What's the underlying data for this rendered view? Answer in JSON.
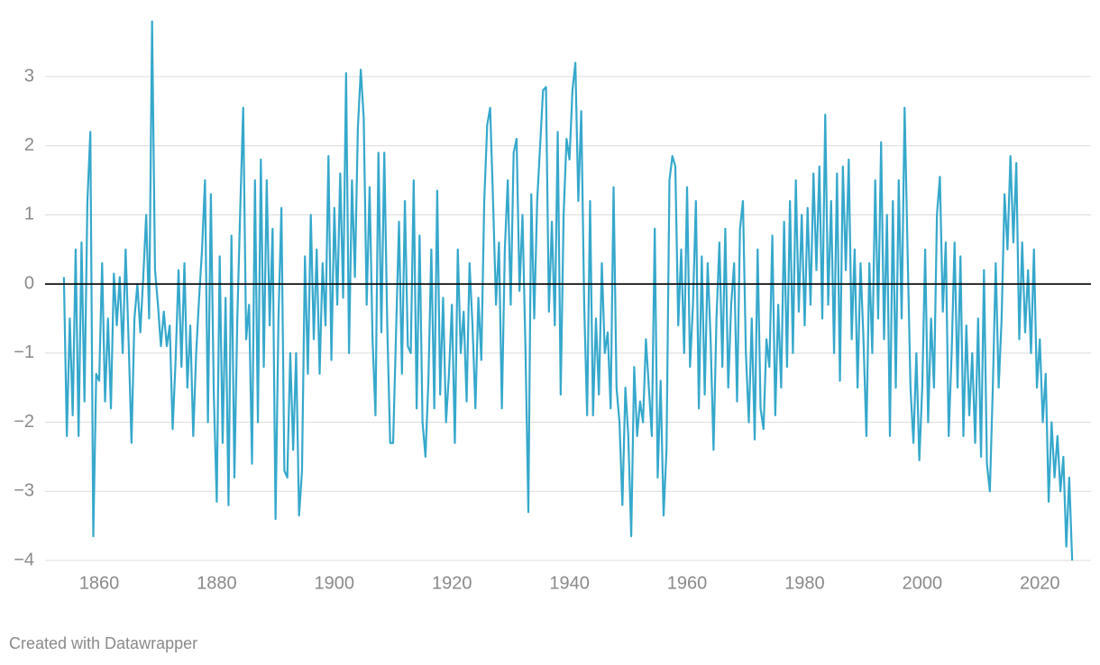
{
  "chart_data": {
    "type": "line",
    "credit": "Created with Datawrapper",
    "xlim": [
      1850.8,
      2028.7
    ],
    "xticks": [
      1860,
      1880,
      1900,
      1920,
      1940,
      1960,
      1980,
      2000,
      2020
    ],
    "ylim": [
      -4,
      3.9
    ],
    "yticks": [
      {
        "value": -4,
        "label": "−4"
      },
      {
        "value": -3,
        "label": "−3"
      },
      {
        "value": -2,
        "label": "−2"
      },
      {
        "value": -1,
        "label": "−1"
      },
      0,
      1,
      2,
      3
    ],
    "grid": true,
    "x": [
      1854,
      1854.5,
      1855,
      1855.5,
      1856,
      1856.5,
      1857,
      1857.5,
      1858,
      1858.5,
      1859,
      1859.5,
      1860,
      1860.5,
      1861,
      1861.5,
      1862,
      1862.5,
      1863,
      1863.5,
      1864,
      1864.5,
      1865,
      1865.5,
      1866,
      1866.5,
      1867,
      1867.5,
      1868,
      1868.5,
      1869,
      1869.5,
      1870,
      1870.5,
      1871,
      1871.5,
      1872,
      1872.5,
      1873,
      1873.5,
      1874,
      1874.5,
      1875,
      1875.5,
      1876,
      1876.5,
      1877,
      1877.5,
      1878,
      1878.5,
      1879,
      1879.5,
      1880,
      1880.5,
      1881,
      1881.5,
      1882,
      1882.5,
      1883,
      1883.5,
      1884,
      1884.5,
      1885,
      1885.5,
      1886,
      1886.5,
      1887,
      1887.5,
      1888,
      1888.5,
      1889,
      1889.5,
      1890,
      1890.5,
      1891,
      1891.5,
      1892,
      1892.5,
      1893,
      1893.5,
      1894,
      1894.5,
      1895,
      1895.5,
      1896,
      1896.5,
      1897,
      1897.5,
      1898,
      1898.5,
      1899,
      1899.5,
      1900,
      1900.5,
      1901,
      1901.5,
      1902,
      1902.5,
      1903,
      1903.5,
      1904,
      1904.5,
      1905,
      1905.5,
      1906,
      1906.5,
      1907,
      1907.5,
      1908,
      1908.5,
      1909,
      1909.5,
      1910,
      1910.5,
      1911,
      1911.5,
      1912,
      1912.5,
      1913,
      1913.5,
      1914,
      1914.5,
      1915,
      1915.5,
      1916,
      1916.5,
      1917,
      1917.5,
      1918,
      1918.5,
      1919,
      1919.5,
      1920,
      1920.5,
      1921,
      1921.5,
      1922,
      1922.5,
      1923,
      1923.5,
      1924,
      1924.5,
      1925,
      1925.5,
      1926,
      1926.5,
      1927,
      1927.5,
      1928,
      1928.5,
      1929,
      1929.5,
      1930,
      1930.5,
      1931,
      1931.5,
      1932,
      1932.5,
      1933,
      1933.5,
      1934,
      1934.5,
      1935,
      1935.5,
      1936,
      1936.5,
      1937,
      1937.5,
      1938,
      1938.5,
      1939,
      1939.5,
      1940,
      1940.5,
      1941,
      1941.5,
      1942,
      1942.5,
      1943,
      1943.5,
      1944,
      1944.5,
      1945,
      1945.5,
      1946,
      1946.5,
      1947,
      1947.5,
      1948,
      1948.5,
      1949,
      1949.5,
      1950,
      1950.5,
      1951,
      1951.5,
      1952,
      1952.5,
      1953,
      1953.5,
      1954,
      1954.5,
      1955,
      1955.5,
      1956,
      1956.5,
      1957,
      1957.5,
      1958,
      1958.5,
      1959,
      1959.5,
      1960,
      1960.5,
      1961,
      1961.5,
      1962,
      1962.5,
      1963,
      1963.5,
      1964,
      1964.5,
      1965,
      1965.5,
      1966,
      1966.5,
      1967,
      1967.5,
      1968,
      1968.5,
      1969,
      1969.5,
      1970,
      1970.5,
      1971,
      1971.5,
      1972,
      1972.5,
      1973,
      1973.5,
      1974,
      1974.5,
      1975,
      1975.5,
      1976,
      1976.5,
      1977,
      1977.5,
      1978,
      1978.5,
      1979,
      1979.5,
      1980,
      1980.5,
      1981,
      1981.5,
      1982,
      1982.5,
      1983,
      1983.5,
      1984,
      1984.5,
      1985,
      1985.5,
      1986,
      1986.5,
      1987,
      1987.5,
      1988,
      1988.5,
      1989,
      1989.5,
      1990,
      1990.5,
      1991,
      1991.5,
      1992,
      1992.5,
      1993,
      1993.5,
      1994,
      1994.5,
      1995,
      1995.5,
      1996,
      1996.5,
      1997,
      1997.5,
      1998,
      1998.5,
      1999,
      1999.5,
      2000,
      2000.5,
      2001,
      2001.5,
      2002,
      2002.5,
      2003,
      2003.5,
      2004,
      2004.5,
      2005,
      2005.5,
      2006,
      2006.5,
      2007,
      2007.5,
      2008,
      2008.5,
      2009,
      2009.5,
      2010,
      2010.5,
      2011,
      2011.5,
      2012,
      2012.5,
      2013,
      2013.5,
      2014,
      2014.5,
      2015,
      2015.5,
      2016,
      2016.5,
      2017,
      2017.5,
      2018,
      2018.5,
      2019,
      2019.5,
      2020,
      2020.5,
      2021,
      2021.5,
      2022,
      2022.5,
      2023,
      2023.5,
      2024,
      2024.5,
      2025,
      2025.5
    ],
    "series": [
      {
        "color": "#36a8cc",
        "values": [
          0.1,
          -2.2,
          -0.5,
          -1.9,
          0.5,
          -2.2,
          0.6,
          -1.7,
          1.2,
          2.2,
          -3.65,
          -1.3,
          -1.4,
          0.3,
          -1.7,
          -0.5,
          -1.8,
          0.15,
          -0.6,
          0.1,
          -1.0,
          0.5,
          -0.8,
          -2.3,
          -0.5,
          0,
          -0.7,
          0.1,
          1.0,
          -0.5,
          3.8,
          0.2,
          -0.3,
          -0.9,
          -0.4,
          -0.9,
          -0.6,
          -2.1,
          -1.1,
          0.2,
          -1.2,
          0.3,
          -1.5,
          -0.6,
          -2.2,
          -1.0,
          -0.2,
          0.5,
          1.5,
          -2.0,
          1.3,
          -1.6,
          -3.15,
          0.4,
          -2.3,
          -0.2,
          -3.2,
          0.7,
          -2.8,
          -0.5,
          1.1,
          2.55,
          -0.8,
          -0.3,
          -2.6,
          1.5,
          -2.0,
          1.8,
          -1.2,
          1.5,
          -0.6,
          0.8,
          -3.4,
          -0.5,
          1.1,
          -2.7,
          -2.8,
          -1.0,
          -2.4,
          -1.0,
          -3.35,
          -2.7,
          0.4,
          -1.3,
          1.0,
          -0.8,
          0.5,
          -1.3,
          0.3,
          -0.6,
          1.85,
          -1.1,
          1.1,
          -0.3,
          1.6,
          -0.2,
          3.05,
          -1.0,
          1.5,
          0.1,
          2.25,
          3.1,
          2.4,
          -0.3,
          1.4,
          -0.8,
          -1.9,
          1.9,
          -0.7,
          1.9,
          -0.6,
          -2.3,
          -2.3,
          -0.7,
          0.9,
          -1.3,
          1.2,
          -0.9,
          -1.0,
          1.5,
          -1.8,
          0.7,
          -2.0,
          -2.5,
          -1.4,
          0.5,
          -1.8,
          1.35,
          -1.6,
          -0.2,
          -2.0,
          -1.3,
          -0.3,
          -2.3,
          0.5,
          -1.0,
          -0.4,
          -1.7,
          0.3,
          -0.6,
          -1.8,
          -0.2,
          -1.1,
          1.2,
          2.3,
          2.55,
          1.2,
          -0.3,
          0.6,
          -1.8,
          0.5,
          1.5,
          -0.3,
          1.9,
          2.1,
          -0.1,
          1.0,
          -0.9,
          -3.3,
          1.3,
          -0.5,
          1.2,
          2.0,
          2.8,
          2.85,
          -0.4,
          0.9,
          -0.6,
          2.2,
          -1.6,
          1.0,
          2.1,
          1.8,
          2.8,
          3.2,
          1.2,
          2.5,
          -0.3,
          -1.9,
          1.2,
          -1.9,
          -0.5,
          -1.6,
          0.3,
          -1.0,
          -0.7,
          -1.8,
          1.4,
          -1.5,
          -2.0,
          -3.2,
          -1.5,
          -2.2,
          -3.65,
          -1.2,
          -2.2,
          -1.7,
          -2.0,
          -0.8,
          -1.5,
          -2.2,
          0.8,
          -2.8,
          -1.4,
          -3.35,
          -2.4,
          1.5,
          1.85,
          1.7,
          -0.6,
          0.5,
          -1.0,
          1.4,
          -1.2,
          -0.3,
          1.2,
          -1.8,
          0.4,
          -1.6,
          0.3,
          -0.8,
          -2.4,
          -0.5,
          0.6,
          -1.2,
          0.8,
          -1.5,
          -0.3,
          0.3,
          -1.7,
          0.8,
          1.2,
          -1.0,
          -2.0,
          -0.5,
          -2.25,
          0.5,
          -1.8,
          -2.1,
          -0.8,
          -1.2,
          0.7,
          -1.9,
          -0.3,
          -1.5,
          0.9,
          -1.2,
          1.2,
          -1.0,
          1.5,
          -0.4,
          1.0,
          -0.6,
          1.1,
          -0.3,
          1.6,
          0.2,
          1.7,
          -0.5,
          2.45,
          -0.3,
          1.2,
          -1.0,
          1.6,
          -1.4,
          1.7,
          0.2,
          1.8,
          -0.8,
          0.5,
          -1.5,
          0.3,
          -0.8,
          -2.2,
          0.3,
          -1.0,
          1.5,
          -0.5,
          2.05,
          -0.8,
          1.0,
          -2.2,
          1.2,
          -1.5,
          1.5,
          -0.5,
          2.55,
          0.5,
          -1.5,
          -2.3,
          -1.0,
          -2.55,
          -1.5,
          0.5,
          -2.0,
          -0.5,
          -1.5,
          1.0,
          1.55,
          -0.4,
          0.6,
          -2.2,
          -1.0,
          0.6,
          -1.5,
          0.4,
          -2.2,
          -0.6,
          -1.9,
          -1.0,
          -2.3,
          -0.5,
          -2.5,
          0.2,
          -2.6,
          -3.0,
          -1.5,
          0.3,
          -1.5,
          -0.5,
          1.3,
          0.5,
          1.85,
          0.6,
          1.75,
          -0.8,
          0.6,
          -0.7,
          0.2,
          -1.0,
          0.5,
          -1.5,
          -0.8,
          -2.0,
          -1.3,
          -3.15,
          -2.0,
          -2.8,
          -2.2,
          -3.0,
          -2.5,
          -3.8,
          -2.8,
          -4.0
        ]
      }
    ]
  }
}
